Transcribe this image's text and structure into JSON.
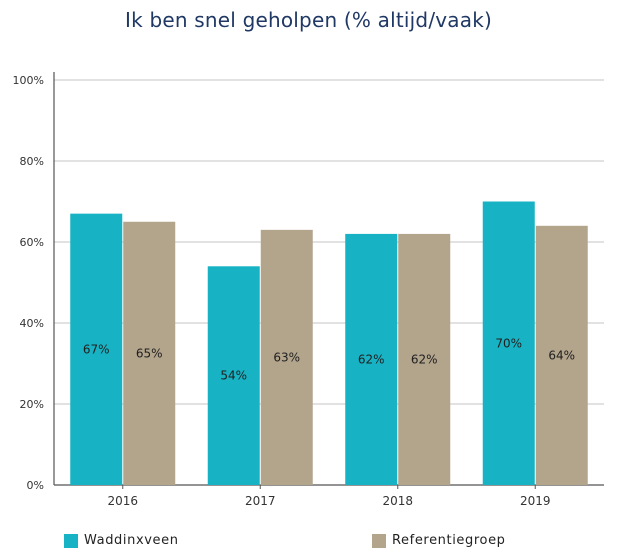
{
  "chart_data": {
    "type": "bar",
    "title": "Ik ben snel geholpen (% altijd/vaak)",
    "categories": [
      "2016",
      "2017",
      "2018",
      "2019"
    ],
    "series": [
      {
        "name": "Waddinxveen",
        "color": "#17b3c4",
        "values": [
          67,
          54,
          62,
          70
        ],
        "labels": [
          "67%",
          "54%",
          "62%",
          "70%"
        ]
      },
      {
        "name": "Referentiegroep",
        "color": "#b3a48c",
        "values": [
          65,
          63,
          62,
          64
        ],
        "labels": [
          "65%",
          "63%",
          "62%",
          "64%"
        ]
      }
    ],
    "ylim": [
      0,
      100
    ],
    "yticks": [
      0,
      20,
      40,
      60,
      80,
      100
    ],
    "ytick_labels": [
      "0%",
      "20%",
      "40%",
      "60%",
      "80%",
      "100%"
    ],
    "grid": true,
    "legend_position": "bottom-left"
  }
}
